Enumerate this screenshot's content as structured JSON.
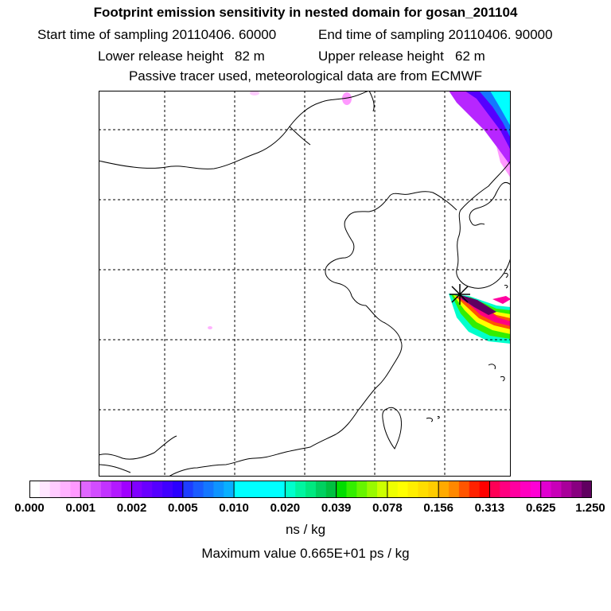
{
  "header": {
    "title": "Footprint emission sensitivity in nested domain for gosan_201104",
    "start_time": "Start time of sampling 20110406. 60000",
    "end_time": "End time of sampling 20110406. 90000",
    "lower_height": "Lower release height   82 m",
    "upper_height": "Upper release height   62 m",
    "tracer_note": "Passive tracer used, meteorological data are from ECMWF"
  },
  "legend": {
    "tick_labels": [
      "0.000",
      "0.001",
      "0.002",
      "0.005",
      "0.010",
      "0.020",
      "0.039",
      "0.078",
      "0.156",
      "0.313",
      "0.625",
      "1.250"
    ],
    "colors": [
      "#ffffff",
      "#ffe6ff",
      "#ffccff",
      "#ffb3ff",
      "#ff99ff",
      "#e066ff",
      "#d24dff",
      "#c233ff",
      "#b31aff",
      "#a000ff",
      "#8000ff",
      "#6a00ff",
      "#5500ff",
      "#4000ff",
      "#2b00ff",
      "#1e3dff",
      "#1a5cff",
      "#1477ff",
      "#0e94ff",
      "#08b0ff",
      "#00ffff",
      "#00ffff",
      "#00ffff",
      "#00ffff",
      "#00ffff",
      "#00ffcc",
      "#00f5a0",
      "#00e880",
      "#00d060",
      "#00c040",
      "#00dd00",
      "#33ee00",
      "#66f500",
      "#99fa00",
      "#ccff00",
      "#eeff00",
      "#ffff00",
      "#ffee00",
      "#ffdd00",
      "#ffcc00",
      "#ffaa00",
      "#ff8800",
      "#ff5500",
      "#ff2200",
      "#ff0000",
      "#ff0055",
      "#ff0080",
      "#ff00a0",
      "#ff00c0",
      "#ff00d5",
      "#e000d0",
      "#c800b8",
      "#a8009a",
      "#880080",
      "#600060"
    ],
    "units": "ns / kg",
    "max_value": "Maximum value  0.665E+01 ps / kg"
  }
}
